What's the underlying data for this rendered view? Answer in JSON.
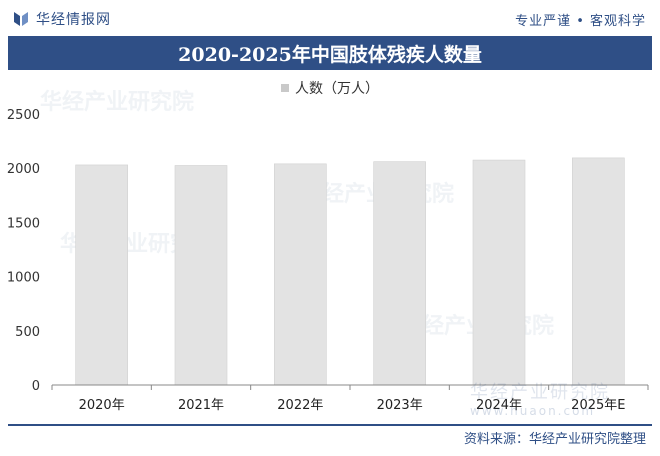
{
  "header": {
    "brand": "华经情报网",
    "slogan": "专业严谨 • 客观科学"
  },
  "chart_data": {
    "type": "bar",
    "title": "2020-2025年中国肢体残疾人数量",
    "categories": [
      "2020年",
      "2021年",
      "2022年",
      "2023年",
      "2024年",
      "2025年E"
    ],
    "series": [
      {
        "name": "人数（万人）",
        "values": [
          2030,
          2025,
          2040,
          2060,
          2075,
          2095
        ]
      }
    ],
    "ylim": [
      0,
      2500
    ],
    "yticks": [
      0,
      500,
      1000,
      1500,
      2000,
      2500
    ],
    "legend_position": "top-center",
    "grid": false,
    "bar_color": "#e3e3e3"
  },
  "footer": {
    "source": "资料来源：华经产业研究院整理"
  },
  "watermark": {
    "name": "华经产业研究院",
    "url": "www.huaon.com"
  }
}
